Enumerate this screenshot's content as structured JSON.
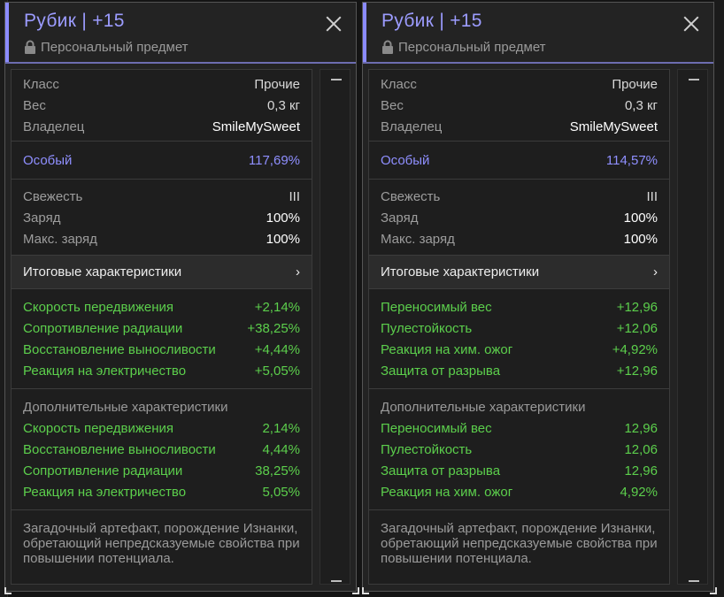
{
  "panels": [
    {
      "title": "Рубик | +15",
      "personal_label": "Персональный предмет",
      "info": [
        {
          "label": "Класс",
          "value": "Прочие"
        },
        {
          "label": "Вес",
          "value": "0,3 кг"
        },
        {
          "label": "Владелец",
          "value": "SmileMySweet"
        }
      ],
      "special": {
        "label": "Особый",
        "value": "117,69%"
      },
      "status": [
        {
          "label": "Свежесть",
          "value": "III"
        },
        {
          "label": "Заряд",
          "value": "100%"
        },
        {
          "label": "Макс. заряд",
          "value": "100%"
        }
      ],
      "totals_heading": "Итоговые характеристики",
      "totals_chevron": "›",
      "totals": [
        {
          "label": "Скорость передвижения",
          "value": "+2,14%"
        },
        {
          "label": "Сопротивление радиации",
          "value": "+38,25%"
        },
        {
          "label": "Восстановление выносливости",
          "value": "+4,44%"
        },
        {
          "label": "Реакция на электричество",
          "value": "+5,05%"
        }
      ],
      "extra_heading": "Дополнительные характеристики",
      "extra": [
        {
          "label": "Скорость передвижения",
          "value": "2,14%"
        },
        {
          "label": "Восстановление выносливости",
          "value": "4,44%"
        },
        {
          "label": "Сопротивление радиации",
          "value": "38,25%"
        },
        {
          "label": "Реакция на электричество",
          "value": "5,05%"
        }
      ],
      "description": "Загадочный артефакт, порождение Изнанки, обретающий непредсказуемые свойства при повышении потенциала."
    },
    {
      "title": "Рубик | +15",
      "personal_label": "Персональный предмет",
      "info": [
        {
          "label": "Класс",
          "value": "Прочие"
        },
        {
          "label": "Вес",
          "value": "0,3 кг"
        },
        {
          "label": "Владелец",
          "value": "SmileMySweet"
        }
      ],
      "special": {
        "label": "Особый",
        "value": "114,57%"
      },
      "status": [
        {
          "label": "Свежесть",
          "value": "III"
        },
        {
          "label": "Заряд",
          "value": "100%"
        },
        {
          "label": "Макс. заряд",
          "value": "100%"
        }
      ],
      "totals_heading": "Итоговые характеристики",
      "totals_chevron": "›",
      "totals": [
        {
          "label": "Переносимый вес",
          "value": "+12,96"
        },
        {
          "label": "Пулестойкость",
          "value": "+12,06"
        },
        {
          "label": "Реакция на хим. ожог",
          "value": "+4,92%"
        },
        {
          "label": "Защита от разрыва",
          "value": "+12,96"
        }
      ],
      "extra_heading": "Дополнительные характеристики",
      "extra": [
        {
          "label": "Переносимый вес",
          "value": "12,96"
        },
        {
          "label": "Пулестойкость",
          "value": "12,06"
        },
        {
          "label": "Защита от разрыва",
          "value": "12,96"
        },
        {
          "label": "Реакция на хим. ожог",
          "value": "4,92%"
        }
      ],
      "description": "Загадочный артефакт, порождение Изнанки, обретающий непредсказуемые свойства при повышении потенциала."
    }
  ],
  "icons": {
    "close": "close-icon",
    "lock": "lock-icon",
    "chevron": "chevron-right-icon"
  },
  "colors": {
    "accent": "#8b8bff",
    "stat_green": "#5ccf4c",
    "special_purple": "#8f8fff"
  }
}
